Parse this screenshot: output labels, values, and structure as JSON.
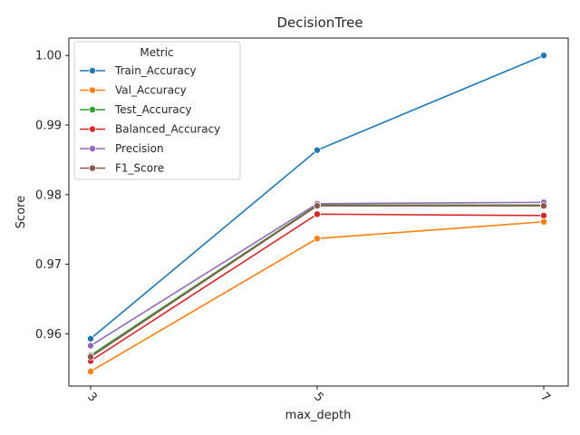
{
  "chart_data": {
    "type": "line",
    "title": "DecisionTree",
    "xlabel": "max_depth",
    "ylabel": "Score",
    "x": [
      3,
      5,
      7
    ],
    "x_tick_labels": [
      "3",
      "5",
      "7"
    ],
    "ylim": [
      0.9525,
      1.0025
    ],
    "y_ticks": [
      0.96,
      0.97,
      0.98,
      0.99,
      1.0
    ],
    "y_tick_labels": [
      "0.96",
      "0.97",
      "0.98",
      "0.99",
      "1.00"
    ],
    "grid": false,
    "legend": {
      "title": "Metric",
      "placement": "top-left"
    },
    "series": [
      {
        "name": "Train_Accuracy",
        "color": "#1f77b4",
        "values": [
          0.9593,
          0.9864,
          1.0
        ]
      },
      {
        "name": "Val_Accuracy",
        "color": "#ff7f0e",
        "values": [
          0.9546,
          0.9737,
          0.9761
        ]
      },
      {
        "name": "Test_Accuracy",
        "color": "#2ca02c",
        "values": [
          0.9569,
          0.9785,
          0.9785
        ]
      },
      {
        "name": "Balanced_Accuracy",
        "color": "#d62728",
        "values": [
          0.9561,
          0.9772,
          0.977
        ]
      },
      {
        "name": "Precision",
        "color": "#9467bd",
        "values": [
          0.9583,
          0.9787,
          0.9789
        ]
      },
      {
        "name": "F1_Score",
        "color": "#8c564b",
        "values": [
          0.9567,
          0.9784,
          0.9784
        ]
      }
    ]
  }
}
